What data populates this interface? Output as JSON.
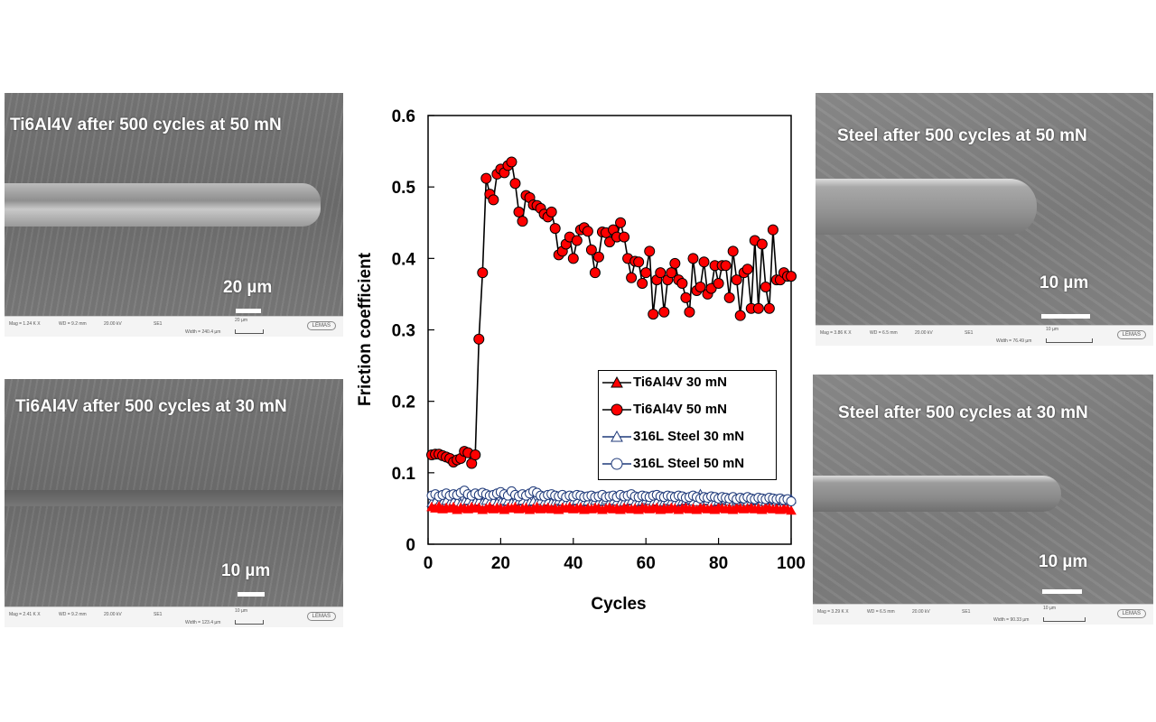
{
  "panels": [
    {
      "title": "Ti6Al4V after 500 cycles at 50 mN",
      "scale": "20 µm",
      "info": {
        "mag": "Mag = 1.24 K X",
        "wd": "WD = 9.2 mm",
        "kv": "20.00 kV",
        "det": "SE1",
        "width": "Width = 240.4 µm",
        "bar": "20 µm",
        "logo": "LEMAS"
      }
    },
    {
      "title": "Ti6Al4V after 500 cycles at 30 mN",
      "scale": "10 µm",
      "info": {
        "mag": "Mag = 2.41 K X",
        "wd": "WD = 9.2 mm",
        "kv": "20.00 kV",
        "det": "SE1",
        "width": "Width = 123.4 µm",
        "bar": "10 µm",
        "logo": "LEMAS"
      }
    },
    {
      "title": "Steel after 500 cycles at 50 mN",
      "scale": "10 µm",
      "info": {
        "mag": "Mag = 3.86 K X",
        "wd": "WD = 6.5 mm",
        "kv": "20.00 kV",
        "det": "SE1",
        "width": "Width = 76.49 µm",
        "bar": "10 µm",
        "logo": "LEMAS"
      }
    },
    {
      "title": "Steel after 500 cycles at 30 mN",
      "scale": "10 µm",
      "info": {
        "mag": "Mag = 3.29 K X",
        "wd": "WD = 6.5 mm",
        "kv": "20.00 kV",
        "det": "SE1",
        "width": "Width = 90.33 µm",
        "bar": "10 µm",
        "logo": "LEMAS"
      }
    }
  ],
  "chart_data": {
    "type": "line",
    "xlabel": "Cycles",
    "ylabel": "Friction coefficient",
    "xlim": [
      0,
      100
    ],
    "ylim": [
      0,
      0.6
    ],
    "xticks": [
      "0",
      "20",
      "40",
      "60",
      "80",
      "100"
    ],
    "yticks": [
      "0",
      "0.1",
      "0.2",
      "0.3",
      "0.4",
      "0.5",
      "0.6"
    ],
    "grid": false,
    "legend": "center-right",
    "series": [
      {
        "name": "Ti6Al4V 30 mN",
        "marker": "filled-triangle",
        "color": "#ff0000",
        "values": [
          0.052,
          0.05,
          0.053,
          0.049,
          0.051,
          0.05,
          0.052,
          0.048,
          0.051,
          0.05,
          0.049,
          0.052,
          0.05,
          0.051,
          0.048,
          0.05,
          0.052,
          0.049,
          0.051,
          0.05,
          0.048,
          0.051,
          0.05,
          0.052,
          0.049,
          0.05,
          0.051,
          0.048,
          0.05,
          0.052,
          0.049,
          0.05,
          0.051,
          0.049,
          0.05,
          0.048,
          0.051,
          0.05,
          0.052,
          0.049,
          0.05,
          0.051,
          0.048,
          0.05,
          0.049,
          0.051,
          0.05,
          0.048,
          0.05,
          0.051,
          0.049,
          0.05,
          0.048,
          0.051,
          0.05,
          0.049,
          0.05,
          0.048,
          0.051,
          0.05,
          0.049,
          0.05,
          0.051,
          0.048,
          0.05,
          0.049,
          0.051,
          0.05,
          0.048,
          0.05,
          0.051,
          0.049,
          0.05,
          0.048,
          0.051,
          0.05,
          0.049,
          0.05,
          0.048,
          0.051,
          0.05,
          0.049,
          0.05,
          0.048,
          0.051,
          0.05,
          0.049,
          0.05,
          0.051,
          0.049,
          0.05,
          0.048,
          0.051,
          0.05,
          0.049,
          0.05,
          0.048,
          0.05,
          0.049,
          0.047
        ]
      },
      {
        "name": "Ti6Al4V 50 mN",
        "marker": "filled-circle",
        "color": "#ff0000",
        "values": [
          0.125,
          0.126,
          0.126,
          0.124,
          0.122,
          0.12,
          0.115,
          0.118,
          0.12,
          0.13,
          0.128,
          0.113,
          0.125,
          0.287,
          0.38,
          0.512,
          0.49,
          0.482,
          0.518,
          0.525,
          0.52,
          0.53,
          0.535,
          0.505,
          0.465,
          0.452,
          0.488,
          0.485,
          0.475,
          0.474,
          0.47,
          0.462,
          0.458,
          0.465,
          0.442,
          0.405,
          0.41,
          0.42,
          0.43,
          0.4,
          0.425,
          0.44,
          0.443,
          0.438,
          0.412,
          0.38,
          0.402,
          0.437,
          0.436,
          0.423,
          0.44,
          0.43,
          0.45,
          0.43,
          0.4,
          0.373,
          0.396,
          0.395,
          0.365,
          0.38,
          0.41,
          0.322,
          0.37,
          0.38,
          0.325,
          0.37,
          0.38,
          0.393,
          0.37,
          0.365,
          0.345,
          0.325,
          0.4,
          0.355,
          0.36,
          0.395,
          0.35,
          0.358,
          0.39,
          0.365,
          0.39,
          0.39,
          0.345,
          0.41,
          0.37,
          0.32,
          0.38,
          0.385,
          0.33,
          0.425,
          0.33,
          0.42,
          0.36,
          0.33,
          0.44,
          0.37,
          0.37,
          0.38,
          0.375,
          0.375
        ]
      },
      {
        "name": "316L Steel 30 mN",
        "marker": "open-triangle",
        "color": "#1f3a7a",
        "values": [
          0.058,
          0.06,
          0.057,
          0.059,
          0.061,
          0.058,
          0.06,
          0.059,
          0.057,
          0.06,
          0.061,
          0.058,
          0.059,
          0.06,
          0.058,
          0.061,
          0.059,
          0.06,
          0.058,
          0.059,
          0.061,
          0.06,
          0.058,
          0.059,
          0.06,
          0.061,
          0.058,
          0.059,
          0.06,
          0.058,
          0.061,
          0.059,
          0.06,
          0.058,
          0.059,
          0.061,
          0.06,
          0.058,
          0.059,
          0.06,
          0.061,
          0.058,
          0.059,
          0.06,
          0.058,
          0.061,
          0.059,
          0.06,
          0.062,
          0.059,
          0.061,
          0.06,
          0.058,
          0.059,
          0.06,
          0.061,
          0.058,
          0.059,
          0.06,
          0.062,
          0.061,
          0.059,
          0.06,
          0.058,
          0.059,
          0.061,
          0.06,
          0.058,
          0.059,
          0.06,
          0.061,
          0.062,
          0.06,
          0.059,
          0.07,
          0.06,
          0.061,
          0.058,
          0.059,
          0.06,
          0.061,
          0.062,
          0.06,
          0.059,
          0.061,
          0.06,
          0.062,
          0.059,
          0.06,
          0.061,
          0.063,
          0.06,
          0.059,
          0.061,
          0.062,
          0.06,
          0.061,
          0.06,
          0.062,
          0.063
        ]
      },
      {
        "name": "316L Steel 50 mN",
        "marker": "open-circle",
        "color": "#1f3a7a",
        "values": [
          0.068,
          0.07,
          0.067,
          0.069,
          0.071,
          0.068,
          0.07,
          0.069,
          0.072,
          0.075,
          0.07,
          0.068,
          0.071,
          0.069,
          0.072,
          0.07,
          0.068,
          0.069,
          0.071,
          0.073,
          0.07,
          0.068,
          0.074,
          0.069,
          0.067,
          0.07,
          0.068,
          0.071,
          0.074,
          0.072,
          0.068,
          0.067,
          0.069,
          0.07,
          0.068,
          0.067,
          0.069,
          0.066,
          0.068,
          0.067,
          0.069,
          0.068,
          0.066,
          0.067,
          0.068,
          0.066,
          0.067,
          0.069,
          0.066,
          0.067,
          0.068,
          0.066,
          0.069,
          0.067,
          0.068,
          0.07,
          0.067,
          0.066,
          0.068,
          0.067,
          0.066,
          0.068,
          0.069,
          0.067,
          0.066,
          0.068,
          0.067,
          0.066,
          0.068,
          0.067,
          0.065,
          0.066,
          0.068,
          0.066,
          0.064,
          0.066,
          0.065,
          0.067,
          0.066,
          0.064,
          0.066,
          0.065,
          0.064,
          0.066,
          0.063,
          0.065,
          0.064,
          0.066,
          0.064,
          0.063,
          0.065,
          0.064,
          0.063,
          0.065,
          0.064,
          0.063,
          0.064,
          0.062,
          0.063,
          0.06
        ]
      }
    ]
  }
}
